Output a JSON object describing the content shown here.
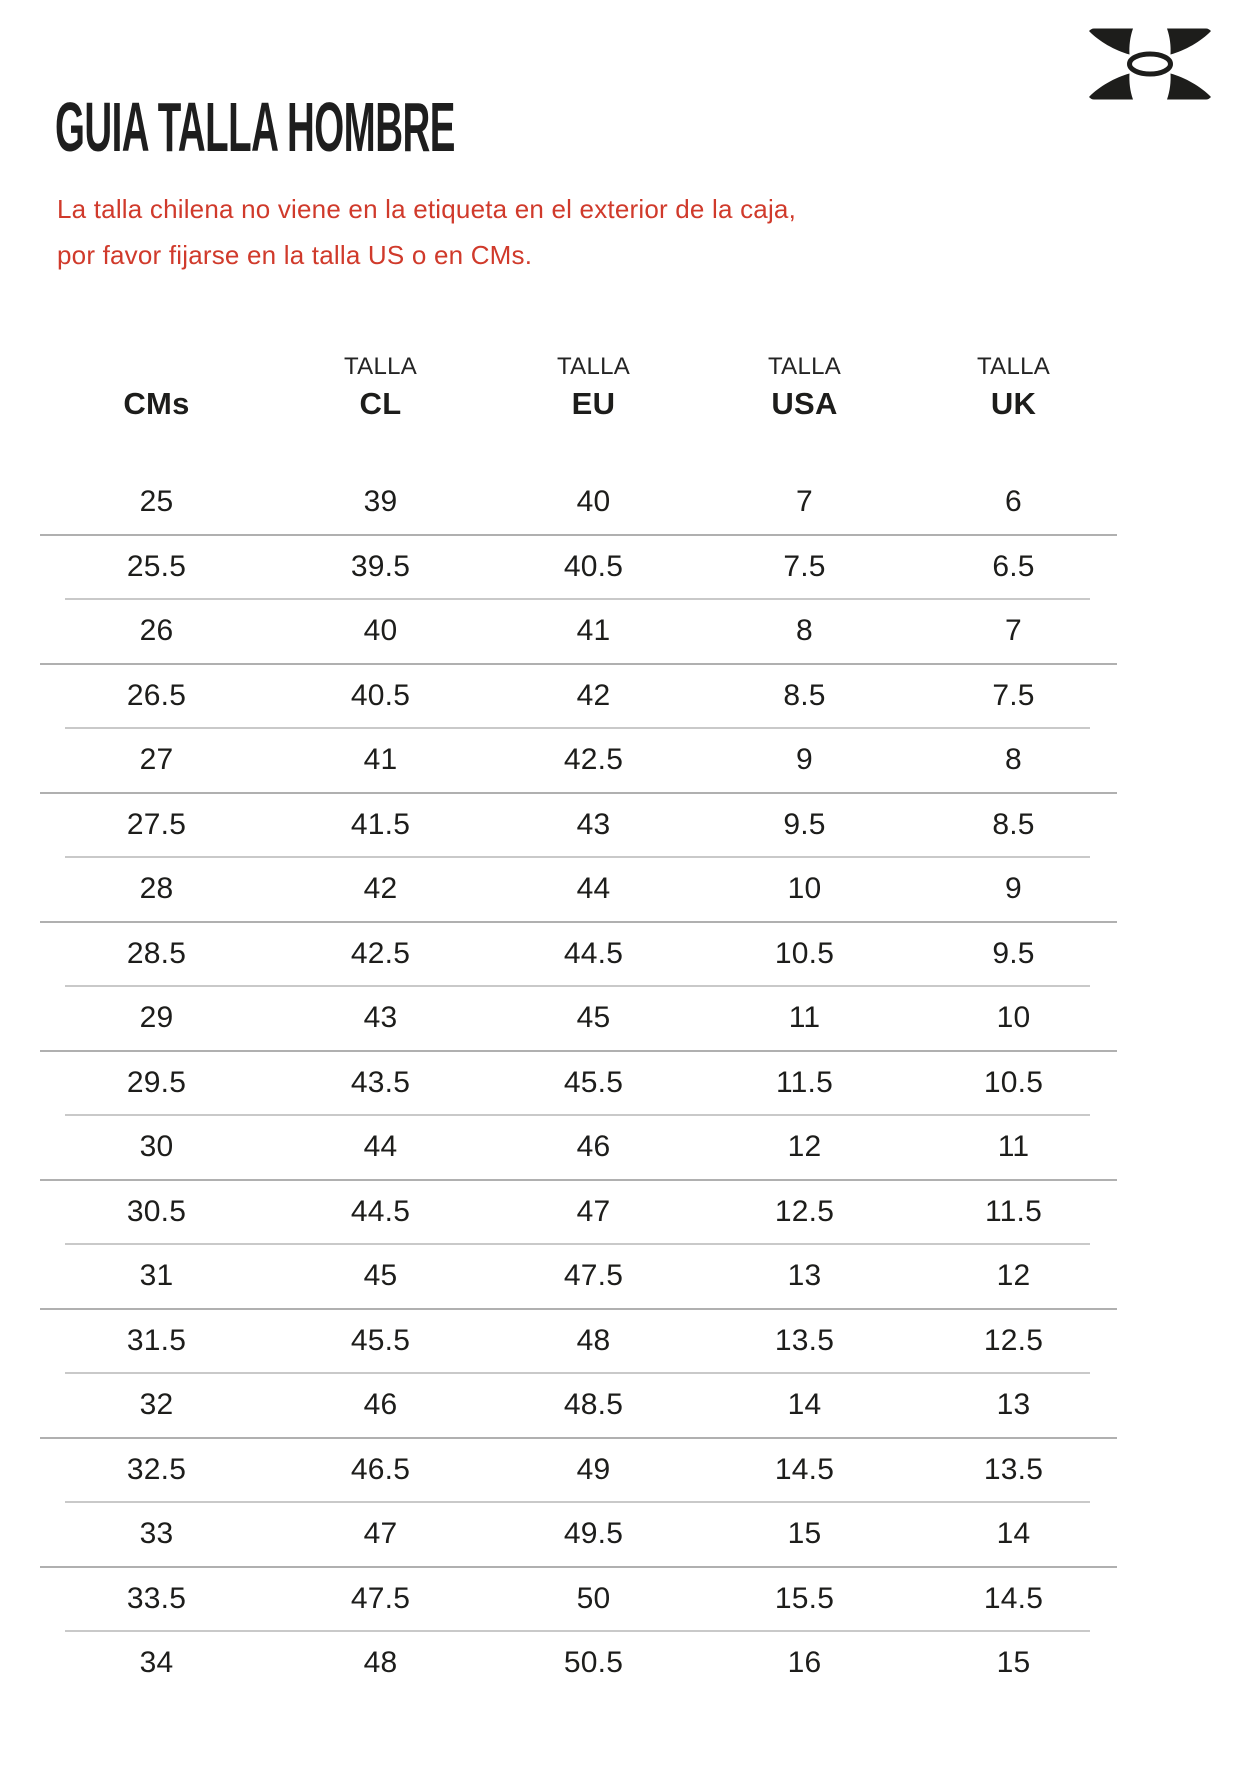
{
  "header": {
    "title": "GUIA TALLA HOMBRE",
    "logo": "under-armour"
  },
  "notice": {
    "lines": [
      "La talla chilena no viene en la etiqueta en el exterior de la caja,",
      "por favor fijarse en la talla US o en CMs."
    ]
  },
  "table": {
    "columns": [
      {
        "super": "",
        "label": "CMs"
      },
      {
        "super": "TALLA",
        "label": "CL"
      },
      {
        "super": "TALLA",
        "label": "EU"
      },
      {
        "super": "TALLA",
        "label": "USA"
      },
      {
        "super": "TALLA",
        "label": "UK"
      }
    ],
    "rows": [
      [
        "25",
        "39",
        "40",
        "7",
        "6"
      ],
      [
        "25.5",
        "39.5",
        "40.5",
        "7.5",
        "6.5"
      ],
      [
        "26",
        "40",
        "41",
        "8",
        "7"
      ],
      [
        "26.5",
        "40.5",
        "42",
        "8.5",
        "7.5"
      ],
      [
        "27",
        "41",
        "42.5",
        "9",
        "8"
      ],
      [
        "27.5",
        "41.5",
        "43",
        "9.5",
        "8.5"
      ],
      [
        "28",
        "42",
        "44",
        "10",
        "9"
      ],
      [
        "28.5",
        "42.5",
        "44.5",
        "10.5",
        "9.5"
      ],
      [
        "29",
        "43",
        "45",
        "11",
        "10"
      ],
      [
        "29.5",
        "43.5",
        "45.5",
        "11.5",
        "10.5"
      ],
      [
        "30",
        "44",
        "46",
        "12",
        "11"
      ],
      [
        "30.5",
        "44.5",
        "47",
        "12.5",
        "11.5"
      ],
      [
        "31",
        "45",
        "47.5",
        "13",
        "12"
      ],
      [
        "31.5",
        "45.5",
        "48",
        "13.5",
        "12.5"
      ],
      [
        "32",
        "46",
        "48.5",
        "14",
        "13"
      ],
      [
        "32.5",
        "46.5",
        "49",
        "14.5",
        "13.5"
      ],
      [
        "33",
        "47",
        "49.5",
        "15",
        "14"
      ],
      [
        "33.5",
        "47.5",
        "50",
        "15.5",
        "14.5"
      ],
      [
        "34",
        "48",
        "50.5",
        "16",
        "15"
      ]
    ]
  },
  "colors": {
    "ink": "#1d1d1b",
    "accent_red": "#d03a2b",
    "line_dark": "#b0b0b0",
    "line_light": "#c9c9c9",
    "background": "#ffffff"
  }
}
